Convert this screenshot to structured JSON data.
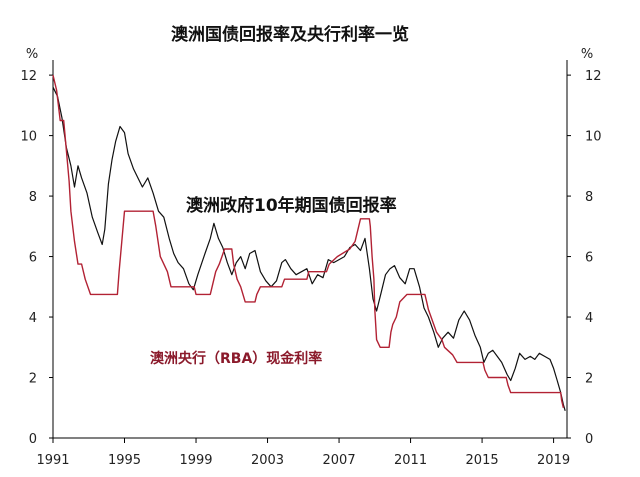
{
  "chart_data": {
    "type": "line",
    "title": "澳洲国债回报率及央行利率一览",
    "ylabel_left": "%",
    "ylabel_right": "%",
    "xlim": [
      1991,
      2019.75
    ],
    "ylim": [
      0,
      12.5
    ],
    "x_ticks": [
      "1991",
      "1995",
      "1999",
      "2003",
      "2007",
      "2011",
      "2015",
      "2019"
    ],
    "x_tick_values": [
      1991,
      1995,
      1999,
      2003,
      2007,
      2011,
      2015,
      2019
    ],
    "y_ticks_left": [
      "0",
      "2",
      "4",
      "6",
      "8",
      "10",
      "12"
    ],
    "y_ticks_right": [
      "0",
      "2",
      "4",
      "6",
      "8",
      "10",
      "12"
    ],
    "y_tick_values": [
      0,
      2,
      4,
      6,
      8,
      10,
      12
    ],
    "grid": false,
    "annotations": {
      "bond": "澳洲政府10年期国债回报率",
      "rba": "澳洲央行（RBA）现金利率"
    },
    "series": [
      {
        "color": "#111111",
        "points": [
          [
            1991.0,
            11.6
          ],
          [
            1991.25,
            11.3
          ],
          [
            1991.5,
            10.6
          ],
          [
            1991.75,
            9.6
          ],
          [
            1992.0,
            9.0
          ],
          [
            1992.2,
            8.3
          ],
          [
            1992.4,
            9.0
          ],
          [
            1992.6,
            8.6
          ],
          [
            1992.9,
            8.1
          ],
          [
            1993.2,
            7.3
          ],
          [
            1993.5,
            6.8
          ],
          [
            1993.75,
            6.4
          ],
          [
            1993.9,
            6.9
          ],
          [
            1994.1,
            8.4
          ],
          [
            1994.3,
            9.2
          ],
          [
            1994.5,
            9.8
          ],
          [
            1994.75,
            10.3
          ],
          [
            1995.0,
            10.1
          ],
          [
            1995.2,
            9.4
          ],
          [
            1995.5,
            8.9
          ],
          [
            1995.75,
            8.6
          ],
          [
            1996.0,
            8.3
          ],
          [
            1996.3,
            8.6
          ],
          [
            1996.6,
            8.1
          ],
          [
            1996.9,
            7.5
          ],
          [
            1997.2,
            7.3
          ],
          [
            1997.5,
            6.6
          ],
          [
            1997.75,
            6.1
          ],
          [
            1998.0,
            5.8
          ],
          [
            1998.3,
            5.6
          ],
          [
            1998.6,
            5.1
          ],
          [
            1998.85,
            4.9
          ],
          [
            1999.1,
            5.4
          ],
          [
            1999.5,
            6.1
          ],
          [
            1999.8,
            6.6
          ],
          [
            2000.0,
            7.1
          ],
          [
            2000.25,
            6.6
          ],
          [
            2000.5,
            6.3
          ],
          [
            2000.75,
            5.8
          ],
          [
            2001.0,
            5.4
          ],
          [
            2001.25,
            5.8
          ],
          [
            2001.5,
            6.0
          ],
          [
            2001.75,
            5.6
          ],
          [
            2002.0,
            6.1
          ],
          [
            2002.3,
            6.2
          ],
          [
            2002.6,
            5.5
          ],
          [
            2002.9,
            5.2
          ],
          [
            2003.2,
            5.0
          ],
          [
            2003.5,
            5.2
          ],
          [
            2003.8,
            5.8
          ],
          [
            2004.0,
            5.9
          ],
          [
            2004.3,
            5.6
          ],
          [
            2004.6,
            5.4
          ],
          [
            2004.9,
            5.5
          ],
          [
            2005.2,
            5.6
          ],
          [
            2005.5,
            5.1
          ],
          [
            2005.8,
            5.4
          ],
          [
            2006.1,
            5.3
          ],
          [
            2006.4,
            5.9
          ],
          [
            2006.7,
            5.8
          ],
          [
            2007.0,
            5.9
          ],
          [
            2007.3,
            6.0
          ],
          [
            2007.6,
            6.3
          ],
          [
            2007.9,
            6.4
          ],
          [
            2008.2,
            6.2
          ],
          [
            2008.45,
            6.6
          ],
          [
            2008.7,
            5.6
          ],
          [
            2008.9,
            4.6
          ],
          [
            2009.1,
            4.2
          ],
          [
            2009.35,
            4.8
          ],
          [
            2009.6,
            5.4
          ],
          [
            2009.85,
            5.6
          ],
          [
            2010.1,
            5.7
          ],
          [
            2010.4,
            5.3
          ],
          [
            2010.7,
            5.1
          ],
          [
            2010.95,
            5.6
          ],
          [
            2011.2,
            5.6
          ],
          [
            2011.5,
            5.0
          ],
          [
            2011.75,
            4.3
          ],
          [
            2012.0,
            4.0
          ],
          [
            2012.3,
            3.5
          ],
          [
            2012.55,
            3.0
          ],
          [
            2012.8,
            3.3
          ],
          [
            2013.1,
            3.5
          ],
          [
            2013.4,
            3.3
          ],
          [
            2013.7,
            3.9
          ],
          [
            2014.0,
            4.2
          ],
          [
            2014.3,
            3.9
          ],
          [
            2014.6,
            3.4
          ],
          [
            2014.9,
            3.0
          ],
          [
            2015.1,
            2.5
          ],
          [
            2015.35,
            2.8
          ],
          [
            2015.6,
            2.9
          ],
          [
            2015.85,
            2.7
          ],
          [
            2016.1,
            2.5
          ],
          [
            2016.4,
            2.1
          ],
          [
            2016.6,
            1.9
          ],
          [
            2016.85,
            2.3
          ],
          [
            2017.1,
            2.8
          ],
          [
            2017.4,
            2.6
          ],
          [
            2017.7,
            2.7
          ],
          [
            2017.95,
            2.6
          ],
          [
            2018.2,
            2.8
          ],
          [
            2018.5,
            2.7
          ],
          [
            2018.8,
            2.6
          ],
          [
            2019.0,
            2.3
          ],
          [
            2019.2,
            1.9
          ],
          [
            2019.4,
            1.5
          ],
          [
            2019.55,
            1.1
          ],
          [
            2019.65,
            0.9
          ]
        ]
      },
      {
        "color": "#b22234",
        "points": [
          [
            1991.0,
            12.0
          ],
          [
            1991.2,
            11.5
          ],
          [
            1991.4,
            10.5
          ],
          [
            1991.6,
            10.5
          ],
          [
            1991.75,
            9.5
          ],
          [
            1991.9,
            8.5
          ],
          [
            1992.0,
            7.5
          ],
          [
            1992.2,
            6.5
          ],
          [
            1992.4,
            5.75
          ],
          [
            1992.6,
            5.75
          ],
          [
            1992.8,
            5.25
          ],
          [
            1993.1,
            4.75
          ],
          [
            1994.6,
            4.75
          ],
          [
            1994.7,
            5.5
          ],
          [
            1994.85,
            6.5
          ],
          [
            1995.0,
            7.5
          ],
          [
            1996.6,
            7.5
          ],
          [
            1996.75,
            7.0
          ],
          [
            1997.0,
            6.0
          ],
          [
            1997.4,
            5.5
          ],
          [
            1997.6,
            5.0
          ],
          [
            1998.9,
            5.0
          ],
          [
            1999.0,
            4.75
          ],
          [
            1999.8,
            4.75
          ],
          [
            1999.9,
            5.0
          ],
          [
            2000.1,
            5.5
          ],
          [
            2000.3,
            5.75
          ],
          [
            2000.6,
            6.25
          ],
          [
            2001.0,
            6.25
          ],
          [
            2001.1,
            5.75
          ],
          [
            2001.3,
            5.25
          ],
          [
            2001.5,
            5.0
          ],
          [
            2001.75,
            4.5
          ],
          [
            2002.3,
            4.5
          ],
          [
            2002.4,
            4.75
          ],
          [
            2002.6,
            5.0
          ],
          [
            2003.8,
            5.0
          ],
          [
            2003.95,
            5.25
          ],
          [
            2005.2,
            5.25
          ],
          [
            2005.3,
            5.5
          ],
          [
            2006.3,
            5.5
          ],
          [
            2006.45,
            5.75
          ],
          [
            2006.9,
            6.0
          ],
          [
            2007.6,
            6.25
          ],
          [
            2007.9,
            6.5
          ],
          [
            2008.1,
            7.0
          ],
          [
            2008.2,
            7.25
          ],
          [
            2008.7,
            7.25
          ],
          [
            2008.75,
            7.0
          ],
          [
            2008.85,
            6.0
          ],
          [
            2008.95,
            5.25
          ],
          [
            2009.0,
            4.25
          ],
          [
            2009.1,
            3.25
          ],
          [
            2009.3,
            3.0
          ],
          [
            2009.8,
            3.0
          ],
          [
            2009.9,
            3.5
          ],
          [
            2010.0,
            3.75
          ],
          [
            2010.2,
            4.0
          ],
          [
            2010.4,
            4.5
          ],
          [
            2010.8,
            4.75
          ],
          [
            2011.8,
            4.75
          ],
          [
            2011.9,
            4.5
          ],
          [
            2012.0,
            4.25
          ],
          [
            2012.3,
            3.75
          ],
          [
            2012.45,
            3.5
          ],
          [
            2012.75,
            3.25
          ],
          [
            2012.9,
            3.0
          ],
          [
            2013.35,
            2.75
          ],
          [
            2013.6,
            2.5
          ],
          [
            2015.05,
            2.5
          ],
          [
            2015.15,
            2.25
          ],
          [
            2015.35,
            2.0
          ],
          [
            2016.35,
            2.0
          ],
          [
            2016.45,
            1.75
          ],
          [
            2016.6,
            1.5
          ],
          [
            2019.4,
            1.5
          ],
          [
            2019.45,
            1.25
          ],
          [
            2019.55,
            1.0
          ]
        ]
      }
    ]
  }
}
